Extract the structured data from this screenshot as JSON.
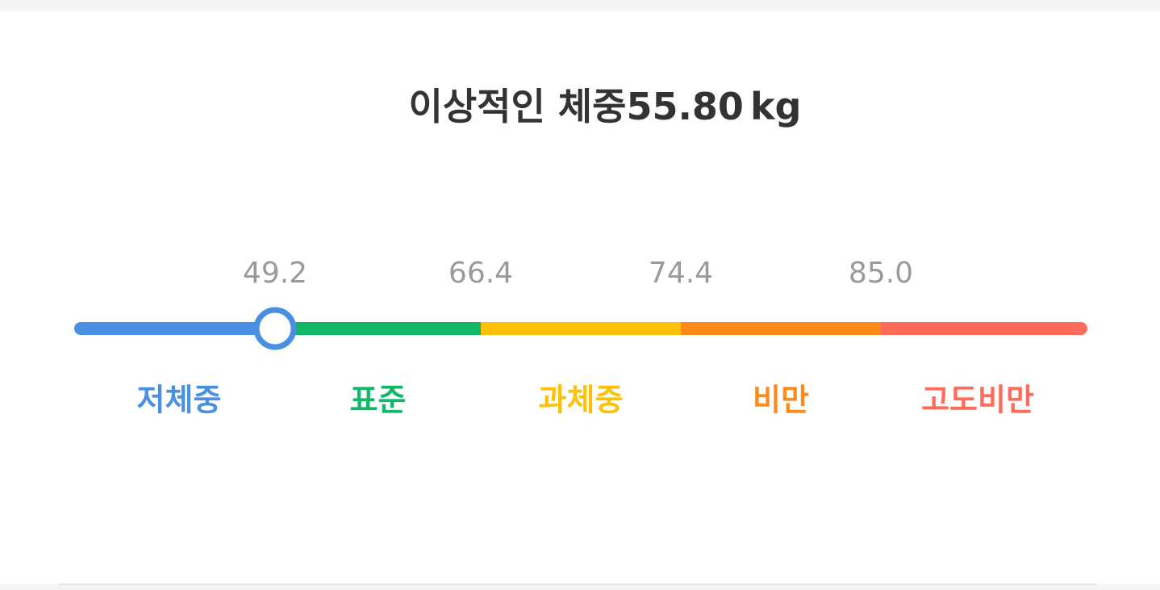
{
  "header": {
    "title": "이상적인 체중",
    "value": "55.80",
    "unit": "kg"
  },
  "scale": {
    "thresholds": [
      "49.2",
      "66.4",
      "74.4",
      "85.0"
    ],
    "categories": [
      {
        "label": "저체중",
        "color": "#4a90e2"
      },
      {
        "label": "표준",
        "color": "#12b76a"
      },
      {
        "label": "과체중",
        "color": "#ffc107"
      },
      {
        "label": "비만",
        "color": "#ff8a1c"
      },
      {
        "label": "고도비만",
        "color": "#ff6b5b"
      }
    ]
  }
}
